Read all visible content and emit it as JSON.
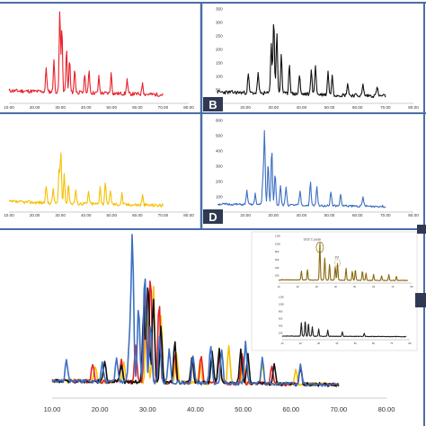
{
  "figure": {
    "panel_letters": [
      "B",
      "D"
    ],
    "border_color": "#4a6da7"
  },
  "chart_data": [
    {
      "panel": "A",
      "type": "line",
      "color": "#e8202a",
      "xlim": [
        10,
        80
      ],
      "ylim": [
        0,
        350
      ],
      "x_ticks": [
        "10.00",
        "20.00",
        "30.00",
        "40.00",
        "50.00",
        "60.00",
        "70.00",
        "80.00"
      ],
      "y_ticks": [],
      "peaks": [
        [
          24.5,
          90
        ],
        [
          27.5,
          120
        ],
        [
          29.8,
          300
        ],
        [
          30.6,
          240
        ],
        [
          32.4,
          160
        ],
        [
          33.6,
          120
        ],
        [
          35.6,
          85
        ],
        [
          39.5,
          70
        ],
        [
          41.2,
          85
        ],
        [
          45,
          60
        ],
        [
          49.8,
          75
        ],
        [
          56,
          55
        ],
        [
          62,
          45
        ]
      ],
      "end_x": 70
    },
    {
      "panel": "B",
      "type": "line",
      "color": "#111111",
      "xlim": [
        10,
        80
      ],
      "ylim": [
        0,
        350
      ],
      "x_ticks": [
        "10.00",
        "20.00",
        "30.00",
        "40.00",
        "50.00",
        "60.00",
        "70.00",
        "80.00"
      ],
      "y_ticks": [
        "50",
        "100",
        "150",
        "200",
        "250",
        "300",
        "350"
      ],
      "peaks": [
        [
          21,
          70
        ],
        [
          24.5,
          75
        ],
        [
          29.2,
          190
        ],
        [
          30.1,
          280
        ],
        [
          31.2,
          230
        ],
        [
          32.8,
          150
        ],
        [
          35.7,
          110
        ],
        [
          39.3,
          70
        ],
        [
          43.5,
          95
        ],
        [
          45,
          110
        ],
        [
          49.5,
          85
        ],
        [
          51,
          70
        ],
        [
          56.5,
          45
        ],
        [
          62,
          40
        ],
        [
          67,
          35
        ]
      ],
      "end_x": 70
    },
    {
      "panel": "C",
      "type": "line",
      "color": "#f5c000",
      "xlim": [
        10,
        80
      ],
      "ylim": [
        0,
        350
      ],
      "x_ticks": [
        "10.00",
        "20.00",
        "30.00",
        "40.00",
        "50.00",
        "60.00",
        "70.00",
        "80.00"
      ],
      "y_ticks": [],
      "peaks": [
        [
          24.5,
          70
        ],
        [
          27.2,
          60
        ],
        [
          29.5,
          130
        ],
        [
          30.2,
          205
        ],
        [
          31.5,
          120
        ],
        [
          33.2,
          80
        ],
        [
          36,
          55
        ],
        [
          41,
          50
        ],
        [
          45.5,
          75
        ],
        [
          47.5,
          90
        ],
        [
          49.5,
          60
        ],
        [
          54,
          45
        ],
        [
          62,
          40
        ]
      ],
      "end_x": 70
    },
    {
      "panel": "D",
      "type": "line",
      "color": "#3b6fc4",
      "xlim": [
        10,
        80
      ],
      "ylim": [
        0,
        600
      ],
      "x_ticks": [
        "10.00",
        "20.00",
        "30.00",
        "40.00",
        "50.00",
        "60.00",
        "70.00",
        "80.00"
      ],
      "y_ticks": [
        "100",
        "200",
        "300",
        "400",
        "500",
        "600"
      ],
      "peaks": [
        [
          20.5,
          90
        ],
        [
          23.5,
          70
        ],
        [
          26.2,
          150
        ],
        [
          26.8,
          480
        ],
        [
          28.1,
          270
        ],
        [
          29.4,
          360
        ],
        [
          30.6,
          210
        ],
        [
          32.5,
          130
        ],
        [
          34.5,
          120
        ],
        [
          39.5,
          95
        ],
        [
          43.2,
          150
        ],
        [
          45.5,
          120
        ],
        [
          50.5,
          95
        ],
        [
          54,
          75
        ],
        [
          62,
          60
        ]
      ],
      "end_x": 70
    },
    {
      "panel": "overlay",
      "type": "line",
      "xlim": [
        10,
        80
      ],
      "ylim": [
        0,
        620
      ],
      "x_ticks": [
        "10.00",
        "20.00",
        "30.00",
        "40.00",
        "50.00",
        "60.00",
        "70.00",
        "80.00"
      ],
      "series": [
        {
          "color": "#f5c000",
          "peaks": [
            [
              19,
              60
            ],
            [
              25,
              80
            ],
            [
              29.8,
              300
            ],
            [
              31.2,
              380
            ],
            [
              32.8,
              260
            ],
            [
              36,
              120
            ],
            [
              41,
              90
            ],
            [
              45,
              130
            ],
            [
              47,
              150
            ],
            [
              50,
              100
            ],
            [
              54,
              80
            ],
            [
              61,
              60
            ]
          ]
        },
        {
          "color": "#e8202a",
          "peaks": [
            [
              18.5,
              70
            ],
            [
              24.5,
              90
            ],
            [
              27.5,
              140
            ],
            [
              29.5,
              360
            ],
            [
              30.6,
              420
            ],
            [
              32.4,
              320
            ],
            [
              35.6,
              120
            ],
            [
              39.5,
              90
            ],
            [
              41.2,
              110
            ],
            [
              45,
              110
            ],
            [
              49.8,
              120
            ],
            [
              56,
              70
            ],
            [
              62,
              60
            ]
          ]
        },
        {
          "color": "#111111",
          "peaks": [
            [
              21,
              80
            ],
            [
              24.5,
              70
            ],
            [
              29.2,
              300
            ],
            [
              30.1,
              400
            ],
            [
              31.2,
              330
            ],
            [
              32.8,
              220
            ],
            [
              35.7,
              160
            ],
            [
              39.3,
              100
            ],
            [
              43.5,
              120
            ],
            [
              45,
              140
            ],
            [
              49.5,
              130
            ],
            [
              51,
              110
            ],
            [
              56.5,
              80
            ],
            [
              62,
              70
            ]
          ]
        },
        {
          "color": "#3b6fc4",
          "peaks": [
            [
              13,
              80
            ],
            [
              20.5,
              70
            ],
            [
              23.5,
              90
            ],
            [
              26.2,
              160
            ],
            [
              26.8,
              580
            ],
            [
              28.1,
              300
            ],
            [
              29.4,
              430
            ],
            [
              30.6,
              230
            ],
            [
              32.5,
              180
            ],
            [
              34.5,
              130
            ],
            [
              39.5,
              110
            ],
            [
              43.2,
              150
            ],
            [
              45.5,
              130
            ],
            [
              50.5,
              160
            ],
            [
              54,
              100
            ],
            [
              62,
              80
            ]
          ]
        }
      ],
      "end_x": 70
    },
    {
      "panel": "inset_E",
      "type": "line",
      "color": "#8a6a10",
      "xlim": [
        10,
        80
      ],
      "ylim": [
        0,
        1200
      ],
      "x_ticks": [
        "10",
        "20",
        "30",
        "40",
        "50",
        "60",
        "70",
        "80"
      ],
      "y_ticks": [
        "200",
        "400",
        "600",
        "800",
        "1000",
        "1200"
      ],
      "peaks": [
        [
          22,
          230
        ],
        [
          25.2,
          260
        ],
        [
          31.7,
          950
        ],
        [
          34.3,
          560
        ],
        [
          36.8,
          400
        ],
        [
          39.8,
          350
        ],
        [
          41,
          420
        ],
        [
          45.5,
          300
        ],
        [
          48.8,
          220
        ],
        [
          50.4,
          270
        ],
        [
          54.1,
          230
        ],
        [
          56,
          180
        ],
        [
          60,
          150
        ],
        [
          64.2,
          120
        ],
        [
          68,
          150
        ],
        [
          72,
          100
        ]
      ],
      "end_x": 78,
      "annotations": [
        "SO2 C peak",
        "ZO"
      ]
    },
    {
      "panel": "inset_F",
      "type": "line",
      "color": "#222222",
      "xlim": [
        10,
        80
      ],
      "ylim": [
        0,
        1200
      ],
      "x_ticks": [
        "10",
        "20",
        "30",
        "40",
        "50",
        "60",
        "70",
        "80"
      ],
      "y_ticks": [
        "200",
        "400",
        "600",
        "800",
        "1000",
        "1200"
      ],
      "peaks": [
        [
          20.5,
          380
        ],
        [
          22.6,
          430
        ],
        [
          24.4,
          360
        ],
        [
          26.5,
          260
        ],
        [
          30,
          200
        ],
        [
          35,
          170
        ],
        [
          43,
          120
        ],
        [
          55,
          90
        ]
      ],
      "end_x": 78
    }
  ]
}
